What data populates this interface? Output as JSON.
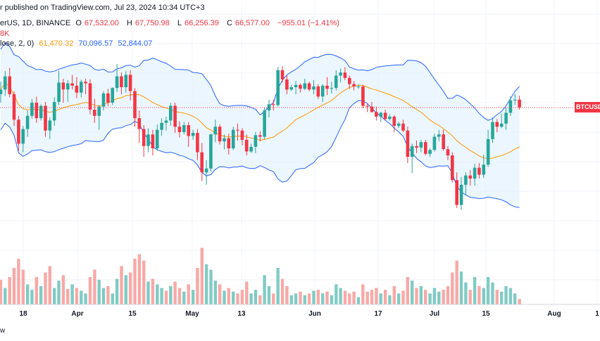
{
  "header": {
    "published": "r published on TradingView.com, Jul 23, 2024 10:34 UTC+3",
    "symbol": "erUS, 1D, BINANCE",
    "o_label": "O",
    "o": "67,532.00",
    "h_label": "H",
    "h": "67,750.98",
    "l_label": "L",
    "l": "66,256.39",
    "c_label": "C",
    "c": "66,577.00",
    "change": "−955.01 (−1.41%)",
    "volume": "8K",
    "bb_label": "lose, 2, 0)",
    "bb_basis": "61,470.32",
    "bb_upper": "70,096.57",
    "bb_lower": "52,844.07"
  },
  "price_tag": "BTCUSD",
  "footer": "w",
  "colors": {
    "up": "#26a69a",
    "down": "#f23645",
    "basis": "#ff9800",
    "band": "#2962ff",
    "fill": "#e3f2fd"
  },
  "chart_data": {
    "type": "candlestick",
    "x_ticks": [
      "18",
      "Apr",
      "15",
      "May",
      "13",
      "Jun",
      "17",
      "Jul",
      "15",
      "Aug",
      "1"
    ],
    "current_price": 66577,
    "ylim": [
      50500,
      73200
    ],
    "candles": [
      [
        68300,
        69900,
        67200,
        68900
      ],
      [
        68900,
        71300,
        68100,
        70600
      ],
      [
        70600,
        71700,
        67900,
        68300
      ],
      [
        68300,
        68700,
        64200,
        65000
      ],
      [
        65000,
        65500,
        61000,
        61900
      ],
      [
        61900,
        64200,
        60800,
        63800
      ],
      [
        63800,
        66200,
        62800,
        65500
      ],
      [
        65500,
        67700,
        65100,
        67200
      ],
      [
        67200,
        68000,
        64600,
        65200
      ],
      [
        65200,
        67000,
        64900,
        66800
      ],
      [
        66800,
        67300,
        62800,
        63600
      ],
      [
        63600,
        65300,
        62500,
        64900
      ],
      [
        64900,
        67900,
        64200,
        67300
      ],
      [
        67300,
        71300,
        66900,
        69800
      ],
      [
        69800,
        70300,
        67200,
        68900
      ],
      [
        68900,
        70100,
        67300,
        69700
      ],
      [
        69700,
        70800,
        68900,
        69400
      ],
      [
        69400,
        70500,
        67800,
        68500
      ],
      [
        68500,
        70200,
        67900,
        69900
      ],
      [
        69900,
        70300,
        68300,
        69700
      ],
      [
        69700,
        70200,
        65700,
        66300
      ],
      [
        66300,
        67700,
        64600,
        65500
      ],
      [
        65500,
        66900,
        63700,
        66700
      ],
      [
        66700,
        68700,
        66200,
        68400
      ],
      [
        68400,
        69000,
        66800,
        67200
      ],
      [
        67200,
        69200,
        66900,
        69100
      ],
      [
        69100,
        72200,
        68600,
        70600
      ],
      [
        70600,
        71100,
        68300,
        69200
      ],
      [
        69200,
        71300,
        68500,
        70800
      ],
      [
        70800,
        71400,
        67500,
        68700
      ],
      [
        68700,
        69100,
        64100,
        65200
      ],
      [
        65200,
        66200,
        62000,
        63800
      ],
      [
        63800,
        64300,
        60200,
        61600
      ],
      [
        61600,
        63900,
        60800,
        63100
      ],
      [
        63100,
        63700,
        60400,
        61300
      ],
      [
        61300,
        64400,
        61000,
        63700
      ],
      [
        63700,
        65200,
        62900,
        64600
      ],
      [
        64600,
        65400,
        63600,
        64900
      ],
      [
        64900,
        67200,
        64200,
        66800
      ],
      [
        66800,
        67200,
        63300,
        64100
      ],
      [
        64100,
        64800,
        62700,
        63400
      ],
      [
        63400,
        64700,
        63100,
        64300
      ],
      [
        64300,
        64700,
        61500,
        62900
      ],
      [
        62900,
        63700,
        62400,
        63300
      ],
      [
        63300,
        63800,
        59800,
        60800
      ],
      [
        60800,
        62000,
        57100,
        58200
      ],
      [
        58200,
        59800,
        56600,
        58700
      ],
      [
        58700,
        63200,
        58300,
        63100
      ],
      [
        63100,
        65000,
        62100,
        64100
      ],
      [
        64100,
        64400,
        61800,
        62200
      ],
      [
        62200,
        63100,
        61200,
        62600
      ],
      [
        62600,
        63200,
        60500,
        61300
      ],
      [
        61300,
        64100,
        61100,
        63700
      ],
      [
        63700,
        64500,
        62300,
        63600
      ],
      [
        63600,
        63900,
        61700,
        62400
      ],
      [
        62400,
        63100,
        60400,
        60900
      ],
      [
        60900,
        61900,
        60700,
        61500
      ],
      [
        61500,
        63400,
        60700,
        63000
      ],
      [
        63000,
        63500,
        62200,
        62800
      ],
      [
        62800,
        66600,
        62500,
        66200
      ],
      [
        66200,
        67600,
        65300,
        67000
      ],
      [
        67000,
        67600,
        66200,
        66900
      ],
      [
        66900,
        71800,
        66700,
        71400
      ],
      [
        71400,
        71900,
        69800,
        70200
      ],
      [
        70200,
        70700,
        68300,
        68900
      ],
      [
        68900,
        69500,
        68700,
        69200
      ],
      [
        69200,
        70000,
        68300,
        69500
      ],
      [
        69500,
        69700,
        68500,
        69000
      ],
      [
        69000,
        70300,
        68800,
        69700
      ],
      [
        69700,
        69900,
        68700,
        68900
      ],
      [
        68900,
        70100,
        68300,
        69300
      ],
      [
        69300,
        69600,
        67700,
        68000
      ],
      [
        68000,
        69600,
        67300,
        69400
      ],
      [
        69400,
        70500,
        68200,
        69000
      ],
      [
        69000,
        69900,
        68400,
        69100
      ],
      [
        69100,
        71400,
        68800,
        70700
      ],
      [
        70700,
        71600,
        69800,
        71100
      ],
      [
        71100,
        71800,
        70100,
        70400
      ],
      [
        70400,
        70700,
        69000,
        69600
      ],
      [
        69600,
        70000,
        68800,
        69300
      ],
      [
        69300,
        69600,
        69000,
        69300
      ],
      [
        69300,
        69500,
        66500,
        66800
      ],
      [
        66800,
        67100,
        66000,
        66700
      ],
      [
        66700,
        67300,
        65900,
        66000
      ],
      [
        66000,
        66700,
        64900,
        65400
      ],
      [
        65400,
        66000,
        64700,
        65900
      ],
      [
        65900,
        66300,
        64900,
        65100
      ],
      [
        65100,
        65700,
        64900,
        65400
      ],
      [
        65400,
        65600,
        63400,
        64200
      ],
      [
        64200,
        64700,
        63900,
        64500
      ],
      [
        64500,
        65000,
        63400,
        63600
      ],
      [
        63600,
        64100,
        59400,
        60200
      ],
      [
        60200,
        61900,
        58100,
        61600
      ],
      [
        61600,
        62300,
        60700,
        61400
      ],
      [
        61400,
        62400,
        60800,
        62100
      ],
      [
        62100,
        62400,
        60400,
        60600
      ],
      [
        60600,
        61300,
        60200,
        61100
      ],
      [
        61100,
        63200,
        60900,
        62800
      ],
      [
        62800,
        63700,
        62200,
        63100
      ],
      [
        63100,
        63700,
        61000,
        61200
      ],
      [
        61200,
        61600,
        59800,
        60400
      ],
      [
        60400,
        60800,
        56900,
        57200
      ],
      [
        57200,
        58200,
        53600,
        54000
      ],
      [
        54000,
        57600,
        53400,
        56600
      ],
      [
        56600,
        58200,
        55200,
        57800
      ],
      [
        57800,
        58500,
        56500,
        57400
      ],
      [
        57400,
        59300,
        56500,
        58800
      ],
      [
        58800,
        59400,
        57400,
        57900
      ],
      [
        57900,
        60500,
        57500,
        59200
      ],
      [
        59200,
        63700,
        58900,
        62500
      ],
      [
        62500,
        65300,
        62000,
        64700
      ],
      [
        64700,
        65100,
        63400,
        64100
      ],
      [
        64100,
        65800,
        63900,
        64500
      ],
      [
        64500,
        66600,
        63700,
        65900
      ],
      [
        65900,
        68000,
        65500,
        67500
      ],
      [
        67500,
        68300,
        66900,
        67600
      ],
      [
        67600,
        68100,
        66300,
        66600
      ]
    ],
    "volumes": [
      [
        27,
        "down"
      ],
      [
        18,
        "up"
      ],
      [
        30,
        "down"
      ],
      [
        40,
        "down"
      ],
      [
        50,
        "down"
      ],
      [
        38,
        "down"
      ],
      [
        22,
        "up"
      ],
      [
        16,
        "up"
      ],
      [
        30,
        "down"
      ],
      [
        20,
        "up"
      ],
      [
        35,
        "down"
      ],
      [
        42,
        "down"
      ],
      [
        18,
        "up"
      ],
      [
        26,
        "up"
      ],
      [
        32,
        "down"
      ],
      [
        17,
        "down"
      ],
      [
        22,
        "up"
      ],
      [
        18,
        "down"
      ],
      [
        15,
        "up"
      ],
      [
        12,
        "up"
      ],
      [
        30,
        "down"
      ],
      [
        38,
        "down"
      ],
      [
        27,
        "up"
      ],
      [
        18,
        "up"
      ],
      [
        20,
        "down"
      ],
      [
        12,
        "up"
      ],
      [
        28,
        "up"
      ],
      [
        42,
        "down"
      ],
      [
        32,
        "up"
      ],
      [
        35,
        "down"
      ],
      [
        50,
        "down"
      ],
      [
        55,
        "down"
      ],
      [
        48,
        "down"
      ],
      [
        25,
        "up"
      ],
      [
        28,
        "down"
      ],
      [
        22,
        "up"
      ],
      [
        18,
        "up"
      ],
      [
        15,
        "down"
      ],
      [
        20,
        "up"
      ],
      [
        25,
        "down"
      ],
      [
        18,
        "down"
      ],
      [
        14,
        "up"
      ],
      [
        22,
        "down"
      ],
      [
        16,
        "up"
      ],
      [
        40,
        "down"
      ],
      [
        62,
        "down"
      ],
      [
        44,
        "up"
      ],
      [
        38,
        "up"
      ],
      [
        26,
        "up"
      ],
      [
        22,
        "down"
      ],
      [
        15,
        "up"
      ],
      [
        18,
        "down"
      ],
      [
        14,
        "up"
      ],
      [
        12,
        "down"
      ],
      [
        16,
        "down"
      ],
      [
        25,
        "down"
      ],
      [
        12,
        "up"
      ],
      [
        16,
        "up"
      ],
      [
        10,
        "down"
      ],
      [
        32,
        "up"
      ],
      [
        20,
        "up"
      ],
      [
        12,
        "down"
      ],
      [
        40,
        "up"
      ],
      [
        28,
        "down"
      ],
      [
        20,
        "down"
      ],
      [
        10,
        "up"
      ],
      [
        12,
        "up"
      ],
      [
        14,
        "down"
      ],
      [
        10,
        "up"
      ],
      [
        12,
        "down"
      ],
      [
        15,
        "up"
      ],
      [
        16,
        "down"
      ],
      [
        12,
        "up"
      ],
      [
        14,
        "down"
      ],
      [
        10,
        "up"
      ],
      [
        22,
        "up"
      ],
      [
        18,
        "up"
      ],
      [
        15,
        "down"
      ],
      [
        12,
        "down"
      ],
      [
        14,
        "down"
      ],
      [
        8,
        "up"
      ],
      [
        22,
        "down"
      ],
      [
        14,
        "down"
      ],
      [
        16,
        "down"
      ],
      [
        18,
        "down"
      ],
      [
        12,
        "up"
      ],
      [
        16,
        "down"
      ],
      [
        10,
        "up"
      ],
      [
        20,
        "down"
      ],
      [
        12,
        "up"
      ],
      [
        15,
        "down"
      ],
      [
        30,
        "down"
      ],
      [
        26,
        "up"
      ],
      [
        18,
        "down"
      ],
      [
        20,
        "up"
      ],
      [
        16,
        "down"
      ],
      [
        12,
        "up"
      ],
      [
        18,
        "up"
      ],
      [
        14,
        "up"
      ],
      [
        16,
        "down"
      ],
      [
        20,
        "down"
      ],
      [
        35,
        "down"
      ],
      [
        48,
        "down"
      ],
      [
        36,
        "up"
      ],
      [
        24,
        "up"
      ],
      [
        16,
        "down"
      ],
      [
        30,
        "up"
      ],
      [
        20,
        "down"
      ],
      [
        18,
        "up"
      ],
      [
        30,
        "up"
      ],
      [
        24,
        "up"
      ],
      [
        16,
        "down"
      ],
      [
        14,
        "up"
      ],
      [
        20,
        "up"
      ],
      [
        18,
        "up"
      ],
      [
        12,
        "up"
      ],
      [
        6,
        "down"
      ]
    ]
  }
}
